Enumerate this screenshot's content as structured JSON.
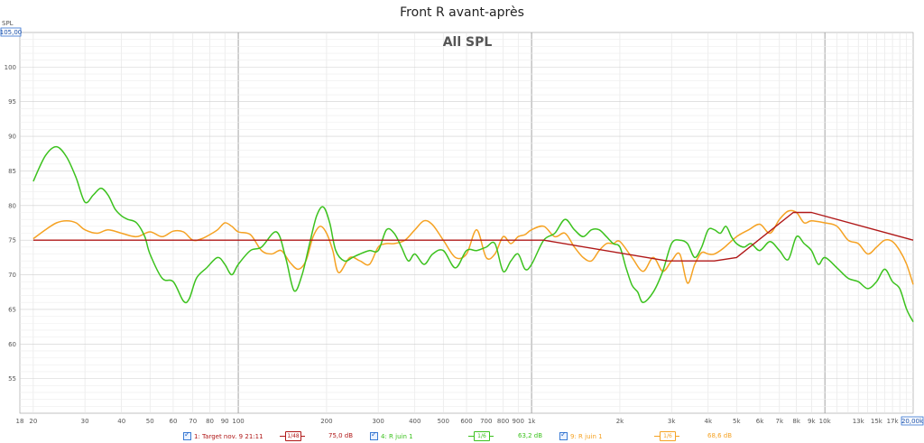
{
  "title": "Front R avant-après",
  "chart_data": {
    "type": "line",
    "title": "All SPL",
    "ylabel": "SPL",
    "ylim": [
      50,
      105
    ],
    "ylim_box": "105,00",
    "xlim": [
      18,
      20000
    ],
    "xlim_box": "20,00k",
    "x_scale": "log",
    "grid": true,
    "y_ticks": [
      "55",
      "60",
      "65",
      "70",
      "75",
      "80",
      "85",
      "90",
      "95",
      "100"
    ],
    "x_ticks": [
      {
        "v": 18,
        "label": "18"
      },
      {
        "v": 20,
        "label": "20"
      },
      {
        "v": 30,
        "label": "30"
      },
      {
        "v": 40,
        "label": "40"
      },
      {
        "v": 50,
        "label": "50"
      },
      {
        "v": 60,
        "label": "60"
      },
      {
        "v": 70,
        "label": "70"
      },
      {
        "v": 80,
        "label": "80"
      },
      {
        "v": 90,
        "label": "90"
      },
      {
        "v": 100,
        "label": "100"
      },
      {
        "v": 200,
        "label": "200"
      },
      {
        "v": 300,
        "label": "300"
      },
      {
        "v": 400,
        "label": "400"
      },
      {
        "v": 500,
        "label": "500"
      },
      {
        "v": 600,
        "label": "600"
      },
      {
        "v": 700,
        "label": "700"
      },
      {
        "v": 800,
        "label": "800"
      },
      {
        "v": 900,
        "label": "900"
      },
      {
        "v": 1000,
        "label": "1k"
      },
      {
        "v": 2000,
        "label": "2k"
      },
      {
        "v": 3000,
        "label": "3k"
      },
      {
        "v": 4000,
        "label": "4k"
      },
      {
        "v": 5000,
        "label": "5k"
      },
      {
        "v": 6000,
        "label": "6k"
      },
      {
        "v": 7000,
        "label": "7k"
      },
      {
        "v": 8000,
        "label": "8k"
      },
      {
        "v": 9000,
        "label": "9k"
      },
      {
        "v": 10000,
        "label": "10k"
      },
      {
        "v": 13000,
        "label": "13k"
      },
      {
        "v": 15000,
        "label": "15k"
      },
      {
        "v": 17000,
        "label": "17k"
      }
    ],
    "series": [
      {
        "name": "1: Target nov. 9 21:11",
        "color": "#b01818",
        "smoothing": "1/48",
        "level": "75,0 dB",
        "x": [
          20,
          1100,
          2900,
          4200,
          5000,
          7800,
          9000,
          20000
        ],
        "y": [
          75,
          75,
          72,
          72,
          72.5,
          79,
          79,
          75
        ]
      },
      {
        "name": "4: R juin 1",
        "color": "#3cc21e",
        "smoothing": "1/6",
        "level": "63,2 dB",
        "x": [
          20,
          22,
          24,
          26,
          28,
          30,
          32,
          34,
          36,
          38,
          40,
          42,
          45,
          48,
          50,
          55,
          60,
          65,
          68,
          72,
          78,
          85,
          90,
          95,
          100,
          110,
          120,
          135,
          145,
          155,
          165,
          175,
          185,
          195,
          205,
          215,
          230,
          245,
          260,
          280,
          300,
          320,
          340,
          360,
          380,
          400,
          430,
          460,
          500,
          550,
          600,
          650,
          700,
          750,
          800,
          850,
          900,
          950,
          1000,
          1100,
          1200,
          1300,
          1400,
          1500,
          1600,
          1700,
          1800,
          1900,
          2000,
          2100,
          2200,
          2300,
          2400,
          2600,
          2800,
          3000,
          3200,
          3400,
          3600,
          3800,
          4000,
          4200,
          4400,
          4600,
          4800,
          5000,
          5300,
          5600,
          6000,
          6500,
          7000,
          7500,
          8000,
          8500,
          9000,
          9500,
          10000,
          11000,
          12000,
          13000,
          14000,
          15000,
          16000,
          17000,
          18000,
          19000,
          20000
        ],
        "y": [
          83.5,
          87.2,
          88.5,
          87,
          84,
          80.5,
          81.5,
          82.5,
          81.5,
          79.5,
          78.5,
          78,
          77.5,
          75.5,
          73,
          69.5,
          69,
          66.2,
          66.5,
          69.5,
          71,
          72.5,
          71.5,
          70,
          71.5,
          73.5,
          74,
          76.2,
          72.5,
          67.7,
          70,
          74.5,
          78.5,
          79.8,
          77.5,
          73.5,
          72,
          72.5,
          73,
          73.5,
          73.5,
          76.5,
          76,
          74,
          72,
          73,
          71.5,
          73,
          73.5,
          71,
          73.5,
          73.5,
          74,
          74.5,
          70.5,
          72,
          73,
          70.8,
          71.5,
          75,
          76,
          78,
          76.5,
          75.5,
          76.5,
          76.5,
          75.5,
          74.5,
          74,
          71,
          68.5,
          67.5,
          66,
          67.5,
          70.5,
          74.5,
          75,
          74.5,
          72.5,
          74,
          76.5,
          76.5,
          76,
          77,
          75.5,
          74.5,
          74,
          74.5,
          73.5,
          74.8,
          73.5,
          72.2,
          75.5,
          74.5,
          73.5,
          71.5,
          72.5,
          71,
          69.5,
          69,
          68,
          69,
          70.8,
          69,
          68,
          65,
          63.2
        ]
      },
      {
        "name": "9: R juin 1",
        "color": "#f5a223",
        "smoothing": "1/6",
        "level": "68,6 dB",
        "x": [
          20,
          22,
          24,
          26,
          28,
          30,
          33,
          36,
          40,
          45,
          50,
          55,
          60,
          65,
          70,
          75,
          80,
          85,
          90,
          95,
          100,
          110,
          120,
          130,
          140,
          150,
          160,
          170,
          180,
          190,
          200,
          210,
          220,
          240,
          260,
          280,
          300,
          320,
          340,
          370,
          400,
          430,
          460,
          500,
          550,
          600,
          650,
          700,
          750,
          800,
          850,
          900,
          950,
          1000,
          1100,
          1200,
          1300,
          1400,
          1500,
          1600,
          1700,
          1800,
          1900,
          2000,
          2200,
          2400,
          2600,
          2800,
          3000,
          3200,
          3400,
          3600,
          3800,
          4000,
          4200,
          4500,
          5000,
          5500,
          6000,
          6500,
          7000,
          7500,
          8000,
          8500,
          9000,
          10000,
          11000,
          12000,
          13000,
          14000,
          15000,
          16000,
          17000,
          18000,
          19000,
          20000
        ],
        "y": [
          75.2,
          76.5,
          77.5,
          77.8,
          77.5,
          76.5,
          76,
          76.5,
          76,
          75.5,
          76.2,
          75.5,
          76.3,
          76.2,
          75,
          75.2,
          75.8,
          76.5,
          77.5,
          77,
          76.2,
          75.8,
          73.5,
          73,
          73.5,
          71.8,
          70.8,
          72,
          75.5,
          77,
          76,
          73.5,
          70.3,
          72.5,
          72,
          71.5,
          74,
          74.5,
          74.5,
          75,
          76.5,
          77.8,
          77.2,
          75,
          72.5,
          73,
          76.5,
          72.5,
          73,
          75.5,
          74.5,
          75.5,
          75.8,
          76.5,
          77,
          75.5,
          76,
          74,
          72.5,
          72,
          73.5,
          74.5,
          74.5,
          74.8,
          72.5,
          70.5,
          72.5,
          70.5,
          72,
          73,
          68.8,
          71.5,
          73.2,
          73,
          73,
          73.8,
          75.5,
          76.5,
          77.3,
          76,
          78,
          79.2,
          79,
          77.5,
          77.8,
          77.5,
          77,
          75,
          74.5,
          73,
          74,
          75,
          74.8,
          73.5,
          71.5,
          68.6
        ]
      }
    ]
  }
}
